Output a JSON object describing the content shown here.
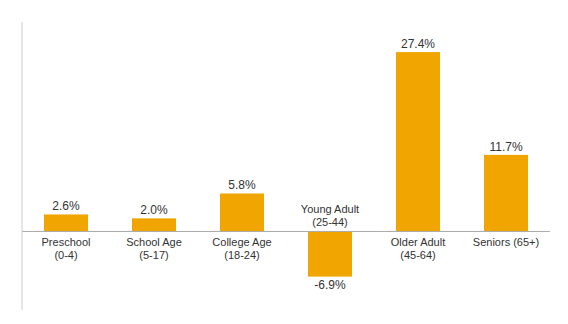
{
  "chart_data": {
    "type": "bar",
    "categories": [
      "Preschool\n(0-4)",
      "School Age\n(5-17)",
      "College Age\n(18-24)",
      "Young Adult\n(25-44)",
      "Older Adult\n(45-64)",
      "Seniors (65+)"
    ],
    "values": [
      2.6,
      2.0,
      5.8,
      -6.9,
      27.4,
      11.7
    ],
    "value_labels": [
      "2.6%",
      "2.0%",
      "5.8%",
      "-6.9%",
      "27.4%",
      "11.7%"
    ],
    "color": "#F0A500",
    "ylim": [
      -12,
      32
    ],
    "data_labels": true,
    "tick_labels": "x",
    "grid": false
  }
}
